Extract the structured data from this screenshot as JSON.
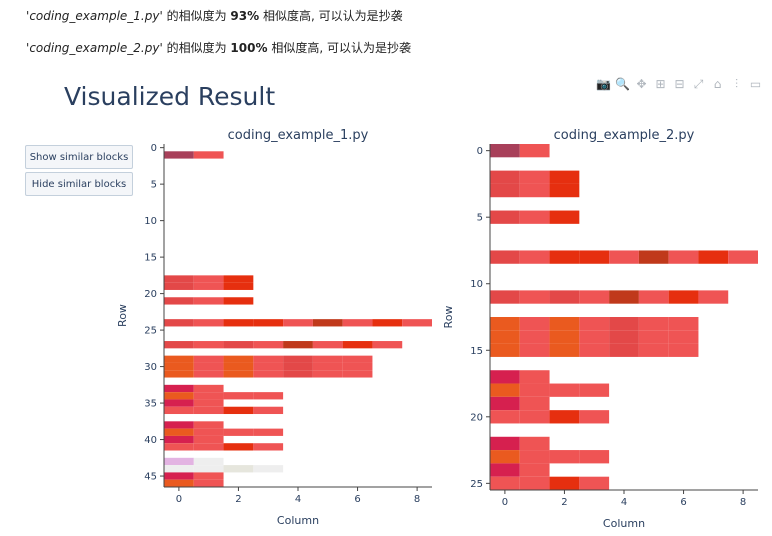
{
  "messages": [
    {
      "quote_open": "'",
      "file": "coding_example_1.py",
      "quote_close": "'",
      "mid": " 的相似度为 ",
      "pct": "93%",
      "tail": " 相似度高, 可以认为是抄袭"
    },
    {
      "quote_open": "'",
      "file": "coding_example_2.py",
      "quote_close": "'",
      "mid": " 的相似度为 ",
      "pct": "100%",
      "tail": " 相似度高, 可以认为是抄袭"
    }
  ],
  "title": "Visualized Result",
  "buttons": {
    "show": "Show similar blocks",
    "hide": "Hide similar blocks"
  },
  "modebar": [
    {
      "name": "camera-icon",
      "glyph": "📷"
    },
    {
      "name": "zoom-icon",
      "glyph": "🔍"
    },
    {
      "name": "pan-icon",
      "glyph": "✥"
    },
    {
      "name": "zoom-in-icon",
      "glyph": "⊞"
    },
    {
      "name": "zoom-out-icon",
      "glyph": "⊟"
    },
    {
      "name": "autoscale-icon",
      "glyph": "⤢"
    },
    {
      "name": "home-icon",
      "glyph": "⌂"
    },
    {
      "name": "spike-lines-icon",
      "glyph": "⫶"
    },
    {
      "name": "compare-icon",
      "glyph": "▭"
    }
  ],
  "chart_data": [
    {
      "type": "heatmap",
      "title": "coding_example_1.py",
      "xlabel": "Column",
      "ylabel": "Row",
      "xlim": [
        -0.5,
        8.5
      ],
      "ylim": [
        46.5,
        -0.5
      ],
      "xticks": [
        0,
        2,
        4,
        6,
        8
      ],
      "yticks": [
        0,
        5,
        10,
        15,
        20,
        25,
        30,
        35,
        40,
        45
      ],
      "rows": [
        {
          "row": 1,
          "colors": [
            "#a8405a",
            "#ef5454"
          ]
        },
        {
          "row": 18,
          "colors": [
            "#e34848",
            "#ef5454",
            "#e62f0f"
          ]
        },
        {
          "row": 19,
          "colors": [
            "#e34848",
            "#ef5454",
            "#e62f0f"
          ]
        },
        {
          "row": 21,
          "colors": [
            "#e34848",
            "#ef5454",
            "#e62f0f"
          ]
        },
        {
          "row": 24,
          "colors": [
            "#e34848",
            "#ef5454",
            "#e62f0f",
            "#e62f0f",
            "#ef5454",
            "#c0391b",
            "#ef5454",
            "#e62f0f",
            "#ef5454"
          ]
        },
        {
          "row": 27,
          "colors": [
            "#e34848",
            "#ef5454",
            "#e34848",
            "#ef5454",
            "#c0391b",
            "#ef5454",
            "#e62f0f",
            "#ef5454"
          ]
        },
        {
          "row": 29,
          "colors": [
            "#ea5a1f",
            "#ef5454",
            "#ea5a1f",
            "#ef5454",
            "#e34848",
            "#ef5454",
            "#ef5454"
          ]
        },
        {
          "row": 30,
          "colors": [
            "#ea5a1f",
            "#ef5454",
            "#ea5a1f",
            "#ef5454",
            "#e34848",
            "#ef5454",
            "#ef5454"
          ]
        },
        {
          "row": 31,
          "colors": [
            "#ea5a1f",
            "#ef5454",
            "#ea5a1f",
            "#ef5454",
            "#e34848",
            "#ef5454",
            "#ef5454"
          ]
        },
        {
          "row": 33,
          "colors": [
            "#d6204f",
            "#ef5454"
          ]
        },
        {
          "row": 34,
          "colors": [
            "#ea5a1f",
            "#ef5454",
            "#ef5454",
            "#ef5454"
          ]
        },
        {
          "row": 35,
          "colors": [
            "#d6204f",
            "#ef5454"
          ]
        },
        {
          "row": 36,
          "colors": [
            "#ef5454",
            "#ef5454",
            "#e62f0f",
            "#ef5454"
          ]
        },
        {
          "row": 38,
          "colors": [
            "#d6204f",
            "#ef5454"
          ]
        },
        {
          "row": 39,
          "colors": [
            "#ea5a1f",
            "#ef5454",
            "#ef5454",
            "#ef5454"
          ]
        },
        {
          "row": 40,
          "colors": [
            "#d6204f",
            "#ef5454"
          ]
        },
        {
          "row": 41,
          "colors": [
            "#ef5454",
            "#ef5454",
            "#e62f0f",
            "#ef5454"
          ]
        },
        {
          "row": 43,
          "colors": [
            "#e3b3e2",
            "#eeeeee"
          ]
        },
        {
          "row": 44,
          "colors": [
            "#eeeeee",
            "#eeeeee",
            "#e6e6dd",
            "#eeeeee"
          ]
        },
        {
          "row": 45,
          "colors": [
            "#d6204f",
            "#ef5454"
          ]
        },
        {
          "row": 46,
          "colors": [
            "#ea5a1f",
            "#ef5454"
          ]
        }
      ]
    },
    {
      "type": "heatmap",
      "title": "coding_example_2.py",
      "xlabel": "Column",
      "ylabel": "Row",
      "xlim": [
        -0.5,
        8.5
      ],
      "ylim": [
        25.5,
        -0.5
      ],
      "xticks": [
        0,
        2,
        4,
        6,
        8
      ],
      "yticks": [
        0,
        5,
        10,
        15,
        20,
        25
      ],
      "rows": [
        {
          "row": 0,
          "colors": [
            "#a8405a",
            "#ef5454"
          ]
        },
        {
          "row": 2,
          "colors": [
            "#e34848",
            "#ef5454",
            "#e62f0f"
          ]
        },
        {
          "row": 3,
          "colors": [
            "#e34848",
            "#ef5454",
            "#e62f0f"
          ]
        },
        {
          "row": 5,
          "colors": [
            "#e34848",
            "#ef5454",
            "#e62f0f"
          ]
        },
        {
          "row": 8,
          "colors": [
            "#e34848",
            "#ef5454",
            "#e62f0f",
            "#e62f0f",
            "#ef5454",
            "#c0391b",
            "#ef5454",
            "#e62f0f",
            "#ef5454"
          ]
        },
        {
          "row": 11,
          "colors": [
            "#e34848",
            "#ef5454",
            "#e34848",
            "#ef5454",
            "#c0391b",
            "#ef5454",
            "#e62f0f",
            "#ef5454"
          ]
        },
        {
          "row": 13,
          "colors": [
            "#ea5a1f",
            "#ef5454",
            "#ea5a1f",
            "#ef5454",
            "#e34848",
            "#ef5454",
            "#ef5454"
          ]
        },
        {
          "row": 14,
          "colors": [
            "#ea5a1f",
            "#ef5454",
            "#ea5a1f",
            "#ef5454",
            "#e34848",
            "#ef5454",
            "#ef5454"
          ]
        },
        {
          "row": 15,
          "colors": [
            "#ea5a1f",
            "#ef5454",
            "#ea5a1f",
            "#ef5454",
            "#e34848",
            "#ef5454",
            "#ef5454"
          ]
        },
        {
          "row": 17,
          "colors": [
            "#d6204f",
            "#ef5454"
          ]
        },
        {
          "row": 18,
          "colors": [
            "#ea5a1f",
            "#ef5454",
            "#ef5454",
            "#ef5454"
          ]
        },
        {
          "row": 19,
          "colors": [
            "#d6204f",
            "#ef5454"
          ]
        },
        {
          "row": 20,
          "colors": [
            "#ef5454",
            "#ef5454",
            "#e62f0f",
            "#ef5454"
          ]
        },
        {
          "row": 22,
          "colors": [
            "#d6204f",
            "#ef5454"
          ]
        },
        {
          "row": 23,
          "colors": [
            "#ea5a1f",
            "#ef5454",
            "#ef5454",
            "#ef5454"
          ]
        },
        {
          "row": 24,
          "colors": [
            "#d6204f",
            "#ef5454"
          ]
        },
        {
          "row": 25,
          "colors": [
            "#ef5454",
            "#ef5454",
            "#e62f0f",
            "#ef5454"
          ]
        }
      ]
    }
  ]
}
